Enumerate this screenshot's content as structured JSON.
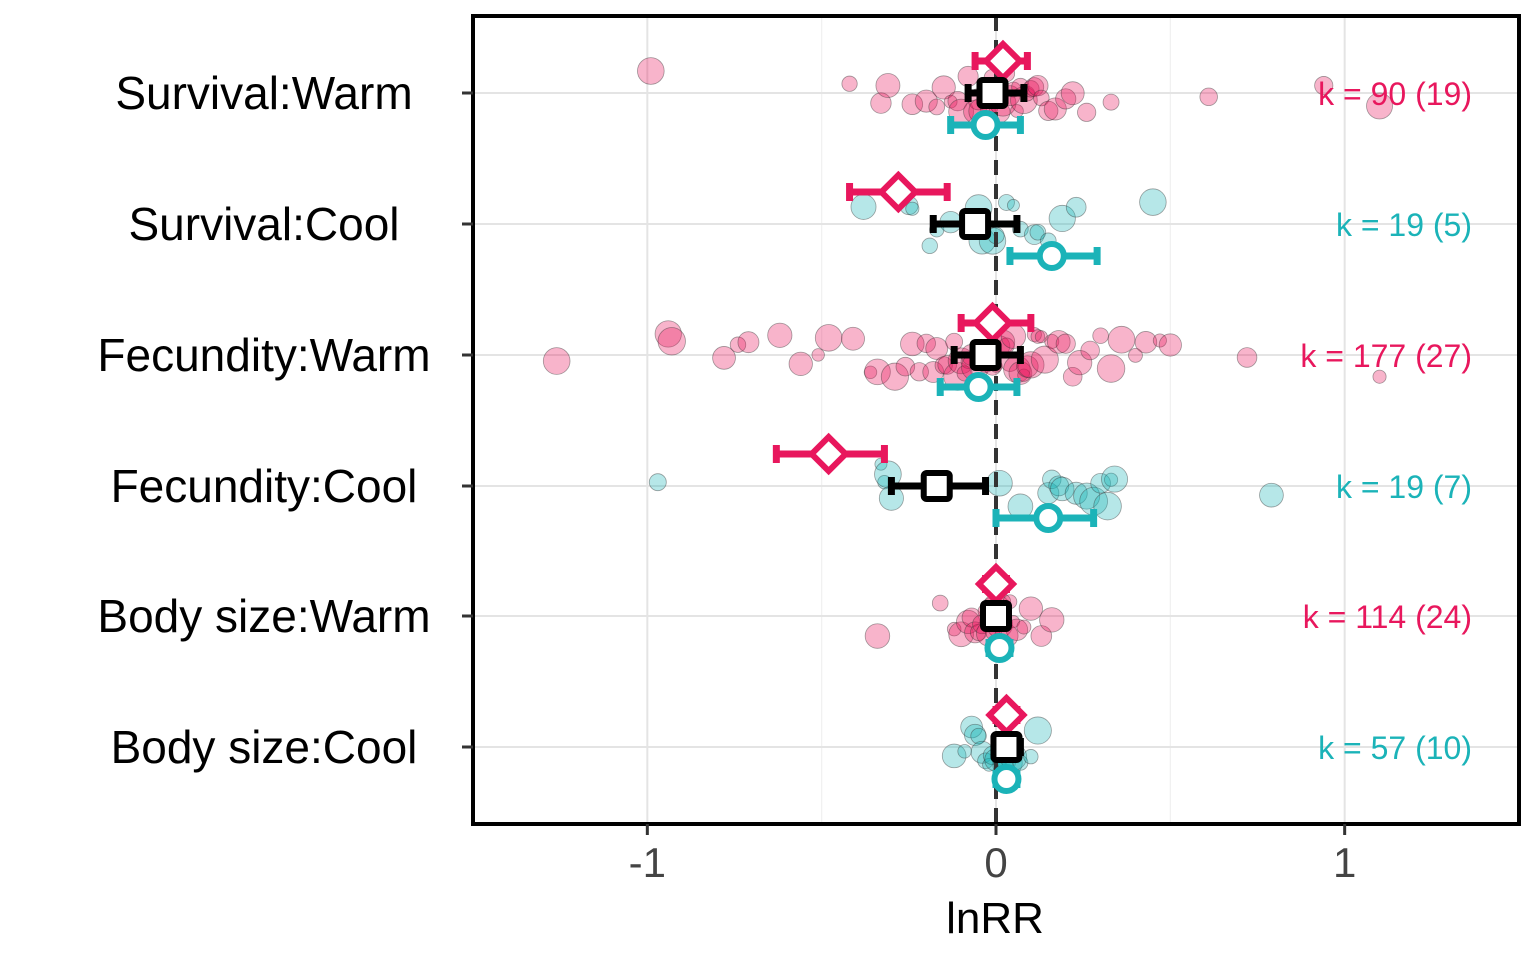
{
  "chart_data": {
    "type": "scatter",
    "title": "",
    "xlabel": "lnRR",
    "ylabel": "",
    "xlim": [
      -1.5,
      1.5
    ],
    "x_ticks": [
      -1,
      0,
      1
    ],
    "x_tick_labels": [
      "-1",
      "0",
      "1"
    ],
    "reference_line": 0,
    "grid": true,
    "colors": {
      "warm": "#E8175D",
      "cool": "#1BB3B8",
      "overall": "#000000"
    },
    "categories": [
      {
        "label": "Survival:Warm",
        "k_label": "k = 90 (19)",
        "k_group": "warm",
        "estimates": {
          "warm": {
            "x": 0.02,
            "lo": -0.06,
            "hi": 0.09
          },
          "overall": {
            "x": -0.01,
            "lo": -0.08,
            "hi": 0.08
          },
          "cool": {
            "x": -0.03,
            "lo": -0.13,
            "hi": 0.07
          }
        },
        "points": [
          -0.99,
          -0.42,
          -0.33,
          -0.31,
          -0.24,
          -0.2,
          -0.17,
          -0.15,
          -0.13,
          -0.11,
          -0.1,
          -0.08,
          -0.06,
          -0.05,
          -0.04,
          -0.03,
          -0.02,
          -0.01,
          0.0,
          0.01,
          0.02,
          0.03,
          0.04,
          0.05,
          0.06,
          0.07,
          0.08,
          0.09,
          0.1,
          0.11,
          0.12,
          0.13,
          0.15,
          0.17,
          0.2,
          0.22,
          0.26,
          0.33,
          0.61,
          0.94,
          1.1
        ]
      },
      {
        "label": "Survival:Cool",
        "k_label": "k = 19 (5)",
        "k_group": "cool",
        "estimates": {
          "warm": {
            "x": -0.28,
            "lo": -0.42,
            "hi": -0.14
          },
          "overall": {
            "x": -0.06,
            "lo": -0.18,
            "hi": 0.06
          },
          "cool": {
            "x": 0.16,
            "lo": 0.04,
            "hi": 0.29
          }
        },
        "points": [
          -0.38,
          -0.25,
          -0.24,
          -0.19,
          -0.17,
          -0.13,
          -0.05,
          -0.04,
          -0.01,
          0.0,
          0.03,
          0.05,
          0.07,
          0.11,
          0.12,
          0.15,
          0.19,
          0.23,
          0.45
        ]
      },
      {
        "label": "Fecundity:Warm",
        "k_label": "k = 177 (27)",
        "k_group": "warm",
        "estimates": {
          "warm": {
            "x": -0.01,
            "lo": -0.1,
            "hi": 0.1
          },
          "overall": {
            "x": -0.03,
            "lo": -0.12,
            "hi": 0.07
          },
          "cool": {
            "x": -0.05,
            "lo": -0.16,
            "hi": 0.06
          }
        },
        "points": [
          -1.26,
          -0.94,
          -0.93,
          -0.78,
          -0.74,
          -0.71,
          -0.62,
          -0.56,
          -0.51,
          -0.48,
          -0.41,
          -0.36,
          -0.34,
          -0.29,
          -0.26,
          -0.24,
          -0.22,
          -0.2,
          -0.18,
          -0.17,
          -0.15,
          -0.14,
          -0.12,
          -0.11,
          -0.1,
          -0.09,
          -0.08,
          -0.07,
          -0.06,
          -0.05,
          -0.04,
          -0.03,
          -0.02,
          -0.01,
          0.0,
          0.01,
          0.02,
          0.03,
          0.04,
          0.05,
          0.06,
          0.07,
          0.08,
          0.09,
          0.1,
          0.11,
          0.12,
          0.13,
          0.14,
          0.16,
          0.18,
          0.2,
          0.22,
          0.24,
          0.27,
          0.3,
          0.33,
          0.36,
          0.4,
          0.43,
          0.47,
          0.5,
          0.72,
          1.1
        ]
      },
      {
        "label": "Fecundity:Cool",
        "k_label": "k = 19 (7)",
        "k_group": "cool",
        "estimates": {
          "warm": {
            "x": -0.48,
            "lo": -0.63,
            "hi": -0.32
          },
          "overall": {
            "x": -0.17,
            "lo": -0.3,
            "hi": -0.03
          },
          "cool": {
            "x": 0.15,
            "lo": 0.0,
            "hi": 0.28
          }
        },
        "points": [
          -0.97,
          -0.33,
          -0.32,
          -0.31,
          -0.3,
          0.01,
          0.07,
          0.15,
          0.16,
          0.18,
          0.19,
          0.23,
          0.26,
          0.28,
          0.3,
          0.32,
          0.33,
          0.34,
          0.79
        ]
      },
      {
        "label": "Body size:Warm",
        "k_label": "k = 114 (24)",
        "k_group": "warm",
        "estimates": {
          "warm": {
            "x": 0.0,
            "lo": -0.03,
            "hi": 0.03
          },
          "overall": {
            "x": 0.0,
            "lo": -0.03,
            "hi": 0.03
          },
          "cool": {
            "x": 0.01,
            "lo": -0.02,
            "hi": 0.04
          }
        },
        "points": [
          -0.34,
          -0.16,
          -0.12,
          -0.1,
          -0.08,
          -0.07,
          -0.06,
          -0.05,
          -0.04,
          -0.03,
          -0.02,
          -0.02,
          -0.01,
          -0.01,
          0.0,
          0.0,
          0.01,
          0.01,
          0.02,
          0.03,
          0.04,
          0.05,
          0.06,
          0.08,
          0.1,
          0.13,
          0.16
        ]
      },
      {
        "label": "Body size:Cool",
        "k_label": "k = 57 (10)",
        "k_group": "cool",
        "estimates": {
          "warm": {
            "x": 0.03,
            "lo": 0.0,
            "hi": 0.06
          },
          "overall": {
            "x": 0.03,
            "lo": 0.0,
            "hi": 0.07
          },
          "cool": {
            "x": 0.03,
            "lo": 0.0,
            "hi": 0.06
          }
        },
        "points": [
          -0.12,
          -0.09,
          -0.07,
          -0.06,
          -0.05,
          -0.04,
          -0.03,
          -0.02,
          -0.01,
          0.0,
          0.01,
          0.02,
          0.03,
          0.04,
          0.05,
          0.07,
          0.1,
          0.12
        ]
      }
    ]
  }
}
